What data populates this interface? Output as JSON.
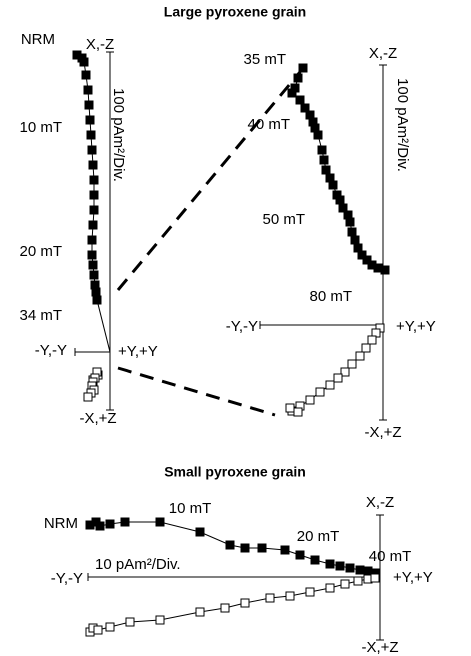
{
  "chart_data": [
    {
      "type": "zijderveld",
      "title": "Large pyroxene grain",
      "axis_labels": {
        "top": "X,-Z",
        "bottom": "-X,+Z",
        "left": "-Y,-Y",
        "right": "+Y,+Y"
      },
      "scale_label": "100 pAm²/Div.",
      "annotations": [
        "NRM",
        "10 mT",
        "20 mT",
        "34 mT"
      ],
      "xlim": [
        -3.5,
        0
      ],
      "ylim": [
        -5.8,
        30
      ],
      "series": [
        {
          "color": "#000000",
          "marker_fill": "#000000",
          "x": [
            -3.3,
            -2.8,
            -2.6,
            -2.4,
            -2.2,
            -2.1,
            -2,
            -1.9,
            -1.8,
            -1.7,
            -1.6,
            -1.6,
            -1.6,
            -1.7,
            -1.8,
            -1.8,
            -1.7,
            -1.6,
            -1.5,
            -1.4,
            -1.3
          ],
          "values": [
            29.7,
            29.4,
            29,
            27.7,
            26.2,
            24.7,
            23.2,
            21.7,
            20.2,
            18.7,
            17.2,
            15.7,
            14.2,
            12.7,
            11.2,
            9.7,
            8.7,
            7.7,
            6.7,
            6,
            5.2
          ]
        },
        {
          "color": "#000000",
          "marker_fill": "#ffffff",
          "x": [
            -1.2,
            -1.3,
            -1.7,
            -1.5,
            -1.7,
            -1.8,
            -1.6,
            -1.9,
            -2.2
          ],
          "values": [
            -2.3,
            -2,
            -2.8,
            -2.6,
            -3,
            -3.4,
            -3.8,
            -4.1,
            -4.5
          ]
        }
      ]
    },
    {
      "type": "zijderveld",
      "axis_labels": {
        "top": "X,-Z",
        "bottom": "-X,+Z",
        "left": "-Y,-Y",
        "right": "+Y,+Y"
      },
      "scale_label": "100 pAm²/Div.",
      "annotations": [
        "35 mT",
        "40 mT",
        "50 mT",
        "80 mT"
      ],
      "xlim": [
        -12.3,
        0
      ],
      "ylim": [
        -9.5,
        26
      ],
      "series": [
        {
          "color": "#000000",
          "marker_fill": "#000000",
          "x": [
            -8,
            -8.5,
            -8.8,
            -9.1,
            -8.3,
            -7.8,
            -7.3,
            -7,
            -6.8,
            -6.5,
            -6.1,
            -5.9,
            -5.7,
            -5.3,
            -5,
            -4.6,
            -4.3,
            -4,
            -3.5,
            -3.3,
            -3.1,
            -2.8,
            -2.5,
            -2.1,
            -1.6,
            -1.1,
            -0.5,
            0.2
          ],
          "values": [
            25.7,
            24.7,
            23.7,
            23.2,
            22.5,
            21.7,
            21,
            20.3,
            19.7,
            19,
            17.5,
            16.5,
            15.5,
            14.7,
            14,
            13,
            12.5,
            11.7,
            11,
            10.3,
            9.3,
            8.5,
            7.7,
            7,
            6.5,
            6,
            5.7,
            5.5
          ]
        },
        {
          "color": "#000000",
          "marker_fill": "#ffffff",
          "x": [
            -0.3,
            -0.7,
            -1.1,
            -1.7,
            -2.3,
            -3.1,
            -3.8,
            -4.5,
            -5.3,
            -6.3,
            -7.3,
            -8.3,
            -9.1,
            -9.3,
            -8.5
          ],
          "values": [
            -0.3,
            -0.8,
            -1.5,
            -2.3,
            -3.1,
            -3.9,
            -4.7,
            -5.3,
            -6,
            -6.7,
            -7.5,
            -8.1,
            -8.6,
            -8.3,
            -8.7
          ]
        }
      ]
    },
    {
      "type": "zijderveld",
      "title": "Small pyroxene grain",
      "axis_labels": {
        "top": "X,-Z",
        "bottom": "-X,+Z",
        "left": "-Y,-Y",
        "right": "+Y,+Y"
      },
      "scale_label": "10 pAm²/Div.",
      "annotations": [
        "NRM",
        "10 mT",
        "20 mT",
        "40 mT"
      ],
      "xlim": [
        -29.2,
        0
      ],
      "ylim": [
        -6.3,
        6.2
      ],
      "series": [
        {
          "color": "#000000",
          "marker_fill": "#000000",
          "x": [
            -29,
            -28.4,
            -28,
            -27,
            -25.5,
            -22,
            -18,
            -15,
            -13.5,
            -11.8,
            -9.5,
            -8,
            -6.5,
            -5,
            -4,
            -3,
            -2,
            -1.2,
            -0.5
          ],
          "values": [
            5.2,
            5.5,
            5.1,
            5.3,
            5.5,
            5.5,
            4.5,
            3.2,
            2.9,
            2.9,
            2.7,
            2.2,
            1.7,
            1.3,
            1.1,
            0.9,
            0.7,
            0.6,
            0.4
          ]
        },
        {
          "color": "#000000",
          "marker_fill": "#ffffff",
          "x": [
            -29,
            -28.7,
            -28.2,
            -27,
            -25,
            -22,
            -18,
            -15.5,
            -13.5,
            -11,
            -9,
            -7,
            -5,
            -3.5,
            -2.2,
            -1.2,
            -0.5
          ],
          "values": [
            -5.5,
            -5.1,
            -5.3,
            -5,
            -4.5,
            -4.3,
            -3.5,
            -3.1,
            -2.6,
            -2.1,
            -1.9,
            -1.5,
            -1.1,
            -0.7,
            -0.4,
            -0.2,
            -0.1
          ]
        }
      ]
    }
  ]
}
